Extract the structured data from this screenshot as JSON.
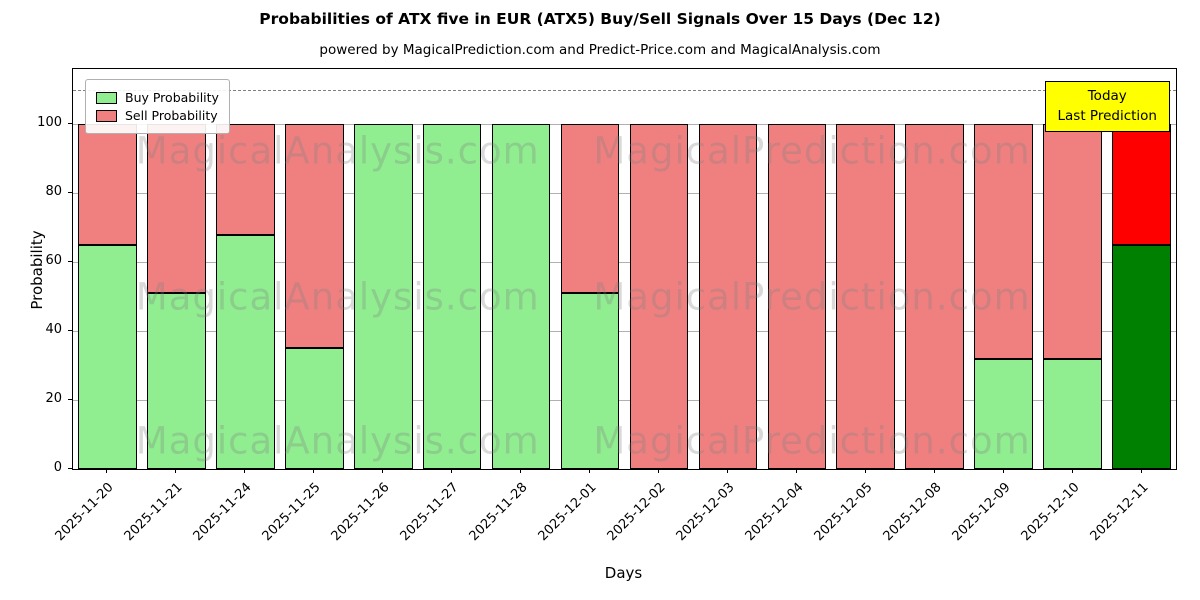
{
  "title": "Probabilities of ATX five in EUR (ATX5) Buy/Sell Signals Over 15 Days (Dec 12)",
  "subtitle": "powered by MagicalPrediction.com and Predict-Price.com and MagicalAnalysis.com",
  "xlabel": "Days",
  "ylabel": "Probability",
  "legend": {
    "buy": "Buy Probability",
    "sell": "Sell Probability"
  },
  "annotation": {
    "line1": "Today",
    "line2": "Last Prediction"
  },
  "watermarks": [
    "MagicalAnalysis.com",
    "MagicalPrediction.com"
  ],
  "colors": {
    "buy": "#90EE90",
    "sell": "#F08080",
    "buy_today": "#008000",
    "sell_today": "#FF0000",
    "annotation_bg": "#FFFF00",
    "grid": "#b0b0b0",
    "dashed_line": "#7f7f7f"
  },
  "chart_data": {
    "type": "bar",
    "stacked": true,
    "title": "Probabilities of ATX five in EUR (ATX5) Buy/Sell Signals Over 15 Days (Dec 12)",
    "xlabel": "Days",
    "ylabel": "Probability",
    "categories": [
      "2025-11-20",
      "2025-11-21",
      "2025-11-24",
      "2025-11-25",
      "2025-11-26",
      "2025-11-27",
      "2025-11-28",
      "2025-12-01",
      "2025-12-02",
      "2025-12-03",
      "2025-12-04",
      "2025-12-05",
      "2025-12-08",
      "2025-12-09",
      "2025-12-10",
      "2025-12-11"
    ],
    "series": [
      {
        "name": "Buy Probability",
        "values": [
          65,
          51,
          68,
          35,
          100,
          100,
          100,
          51,
          0,
          0,
          0,
          0,
          0,
          32,
          32,
          65
        ]
      },
      {
        "name": "Sell Probability",
        "values": [
          35,
          49,
          32,
          65,
          0,
          0,
          0,
          49,
          100,
          100,
          100,
          100,
          100,
          68,
          68,
          35
        ]
      }
    ],
    "ylim": [
      0,
      116
    ],
    "yticks": [
      0,
      20,
      40,
      60,
      80,
      100
    ],
    "dashed_line_y": 110,
    "today_index": 15,
    "legend_position": "upper left",
    "grid": true
  }
}
